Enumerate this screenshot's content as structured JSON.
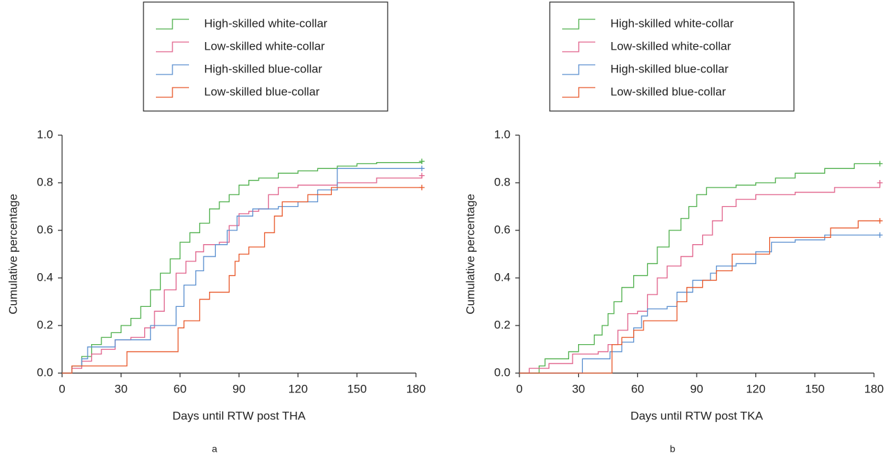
{
  "chart_data": [
    {
      "type": "step",
      "xlabel": "Days until RTW post THA",
      "ylabel": "Cumulative percentage",
      "panel_label": "a",
      "xlim": [
        0,
        180
      ],
      "ylim": [
        0,
        1
      ],
      "xticks": [
        0,
        30,
        60,
        90,
        120,
        150,
        180
      ],
      "yticks": [
        {
          "value": 0,
          "label": "0.0"
        },
        {
          "value": 0.2,
          "label": "0.2"
        },
        {
          "value": 0.4,
          "label": "0.4"
        },
        {
          "value": 0.6,
          "label": "0.6"
        },
        {
          "value": 0.8,
          "label": "0.8"
        },
        {
          "value": 1,
          "label": "1.0"
        }
      ],
      "series": [
        {
          "name": "High-skilled white-collar",
          "color": "#4daf4a",
          "x": [
            0,
            5,
            10,
            15,
            20,
            25,
            30,
            35,
            40,
            45,
            50,
            55,
            60,
            65,
            70,
            75,
            80,
            85,
            90,
            95,
            100,
            110,
            120,
            130,
            140,
            150,
            160,
            170,
            183
          ],
          "values": [
            0,
            0.03,
            0.07,
            0.12,
            0.15,
            0.17,
            0.2,
            0.23,
            0.28,
            0.35,
            0.42,
            0.48,
            0.55,
            0.59,
            0.63,
            0.69,
            0.72,
            0.75,
            0.79,
            0.81,
            0.82,
            0.84,
            0.85,
            0.86,
            0.87,
            0.88,
            0.885,
            0.885,
            0.89
          ]
        },
        {
          "name": "Low-skilled white-collar",
          "color": "#e0608a",
          "x": [
            0,
            5,
            10,
            15,
            20,
            27,
            35,
            42,
            47,
            52,
            58,
            63,
            68,
            72,
            80,
            85,
            90,
            95,
            100,
            105,
            110,
            120,
            140,
            160,
            183
          ],
          "values": [
            0,
            0.02,
            0.05,
            0.08,
            0.1,
            0.14,
            0.15,
            0.19,
            0.26,
            0.35,
            0.42,
            0.47,
            0.51,
            0.54,
            0.55,
            0.62,
            0.67,
            0.68,
            0.69,
            0.75,
            0.78,
            0.79,
            0.8,
            0.82,
            0.83
          ]
        },
        {
          "name": "High-skilled blue-collar",
          "color": "#5a8fcf",
          "x": [
            0,
            5,
            10,
            13,
            27,
            40,
            45,
            55,
            58,
            62,
            68,
            72,
            78,
            84,
            89,
            97,
            104,
            110,
            120,
            130,
            140,
            183
          ],
          "values": [
            0,
            0.03,
            0.06,
            0.11,
            0.14,
            0.14,
            0.2,
            0.2,
            0.28,
            0.37,
            0.43,
            0.49,
            0.54,
            0.6,
            0.66,
            0.69,
            0.69,
            0.7,
            0.72,
            0.77,
            0.86,
            0.86
          ]
        },
        {
          "name": "Low-skilled blue-collar",
          "color": "#e8582a",
          "x": [
            0,
            5,
            30,
            33,
            57,
            59,
            62,
            70,
            75,
            85,
            88,
            90,
            95,
            103,
            108,
            112,
            125,
            137,
            183
          ],
          "values": [
            0,
            0.03,
            0.03,
            0.09,
            0.09,
            0.19,
            0.22,
            0.31,
            0.34,
            0.41,
            0.47,
            0.5,
            0.53,
            0.59,
            0.66,
            0.72,
            0.75,
            0.78,
            0.78
          ]
        }
      ]
    },
    {
      "type": "step",
      "xlabel": "Days until RTW post TKA",
      "ylabel": "Cumulative percentage",
      "panel_label": "b",
      "xlim": [
        0,
        180
      ],
      "ylim": [
        0,
        1
      ],
      "xticks": [
        0,
        30,
        60,
        90,
        120,
        150,
        180
      ],
      "yticks": [
        {
          "value": 0,
          "label": "0.0"
        },
        {
          "value": 0.2,
          "label": "0.2"
        },
        {
          "value": 0.4,
          "label": "0.4"
        },
        {
          "value": 0.6,
          "label": "0.6"
        },
        {
          "value": 0.8,
          "label": "0.8"
        },
        {
          "value": 1,
          "label": "1.0"
        }
      ],
      "series": [
        {
          "name": "High-skilled white-collar",
          "color": "#4daf4a",
          "x": [
            0,
            10,
            13,
            25,
            30,
            38,
            42,
            45,
            48,
            52,
            58,
            65,
            70,
            76,
            82,
            86,
            90,
            95,
            110,
            120,
            130,
            140,
            155,
            170,
            183
          ],
          "values": [
            0,
            0.03,
            0.06,
            0.09,
            0.12,
            0.16,
            0.2,
            0.25,
            0.3,
            0.36,
            0.41,
            0.46,
            0.53,
            0.6,
            0.65,
            0.7,
            0.75,
            0.78,
            0.79,
            0.8,
            0.82,
            0.84,
            0.86,
            0.88,
            0.88
          ]
        },
        {
          "name": "Low-skilled white-collar",
          "color": "#e0608a",
          "x": [
            0,
            5,
            15,
            27,
            40,
            45,
            50,
            55,
            60,
            65,
            70,
            75,
            82,
            88,
            93,
            98,
            103,
            110,
            120,
            140,
            160,
            183
          ],
          "values": [
            0,
            0.02,
            0.04,
            0.08,
            0.09,
            0.12,
            0.18,
            0.25,
            0.26,
            0.33,
            0.4,
            0.45,
            0.49,
            0.54,
            0.58,
            0.64,
            0.7,
            0.73,
            0.75,
            0.76,
            0.78,
            0.8
          ]
        },
        {
          "name": "High-skilled blue-collar",
          "color": "#5a8fcf",
          "x": [
            0,
            30,
            32,
            42,
            46,
            52,
            58,
            62,
            65,
            75,
            80,
            88,
            97,
            100,
            110,
            120,
            128,
            140,
            155,
            183
          ],
          "values": [
            0,
            0,
            0.06,
            0.06,
            0.09,
            0.13,
            0.19,
            0.24,
            0.27,
            0.28,
            0.34,
            0.39,
            0.42,
            0.45,
            0.46,
            0.51,
            0.55,
            0.56,
            0.58,
            0.58
          ]
        },
        {
          "name": "Low-skilled blue-collar",
          "color": "#e8582a",
          "x": [
            0,
            45,
            47,
            52,
            58,
            63,
            77,
            80,
            85,
            93,
            100,
            108,
            120,
            127,
            155,
            158,
            168,
            172,
            183
          ],
          "values": [
            0,
            0,
            0.12,
            0.15,
            0.18,
            0.22,
            0.22,
            0.3,
            0.36,
            0.39,
            0.43,
            0.5,
            0.5,
            0.57,
            0.57,
            0.61,
            0.61,
            0.64,
            0.64
          ]
        }
      ]
    }
  ]
}
